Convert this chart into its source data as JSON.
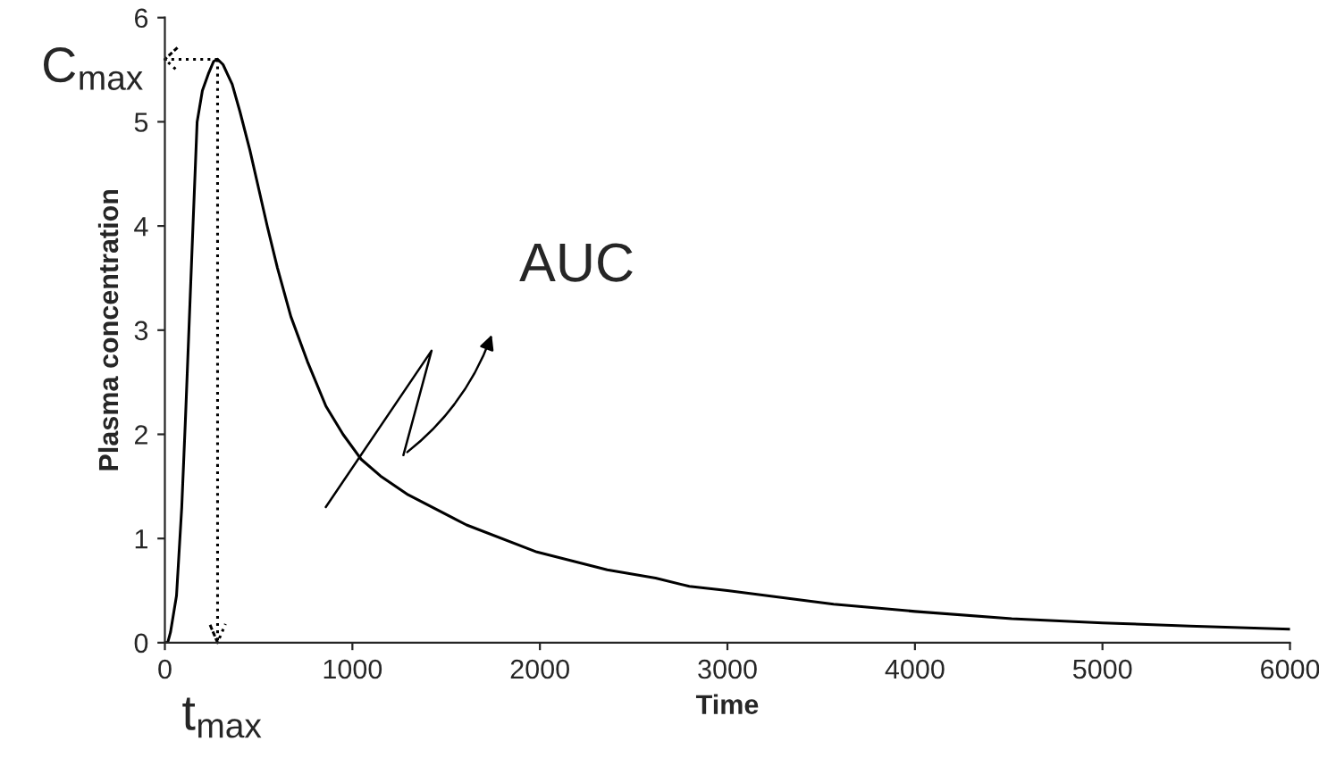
{
  "chart_data": {
    "type": "line",
    "xlabel": "Time",
    "ylabel": "Plasma concentration",
    "x": [
      0,
      15,
      30,
      62,
      90,
      110,
      147,
      172,
      200,
      234,
      260,
      281,
      310,
      359,
      400,
      453,
      547,
      600,
      672,
      760,
      859,
      950,
      1047,
      1150,
      1297,
      1609,
      1984,
      2359,
      2617,
      2797,
      3000,
      3566,
      4000,
      4516,
      5000,
      5465,
      6000
    ],
    "series": [
      {
        "color": "#000000",
        "values": [
          0,
          0,
          0.1,
          0.45,
          1.3,
          2.16,
          3.87,
          5.0,
          5.3,
          5.47,
          5.58,
          5.6,
          5.55,
          5.36,
          5.1,
          4.73,
          3.99,
          3.6,
          3.13,
          2.7,
          2.27,
          2.0,
          1.76,
          1.6,
          1.42,
          1.13,
          0.87,
          0.7,
          0.62,
          0.54,
          0.5,
          0.37,
          0.3,
          0.23,
          0.19,
          0.16,
          0.13
        ]
      }
    ],
    "xlim": [
      0,
      6000
    ],
    "ylim": [
      0,
      6
    ],
    "xticks": [
      0,
      1000,
      2000,
      3000,
      4000,
      5000,
      6000
    ],
    "yticks": [
      0,
      1,
      2,
      3,
      4,
      5,
      6
    ],
    "grid": false,
    "legend": false,
    "marker": "none",
    "line_style": "solid",
    "ref_lines": [
      {
        "axis": "y",
        "value": 5.6,
        "label": "C$_{max}$",
        "line_style": "dotted"
      },
      {
        "axis": "x",
        "value": 281,
        "label": "t$_{max}$",
        "line_style": "dotted"
      }
    ],
    "annotations": [
      "AUC"
    ]
  }
}
